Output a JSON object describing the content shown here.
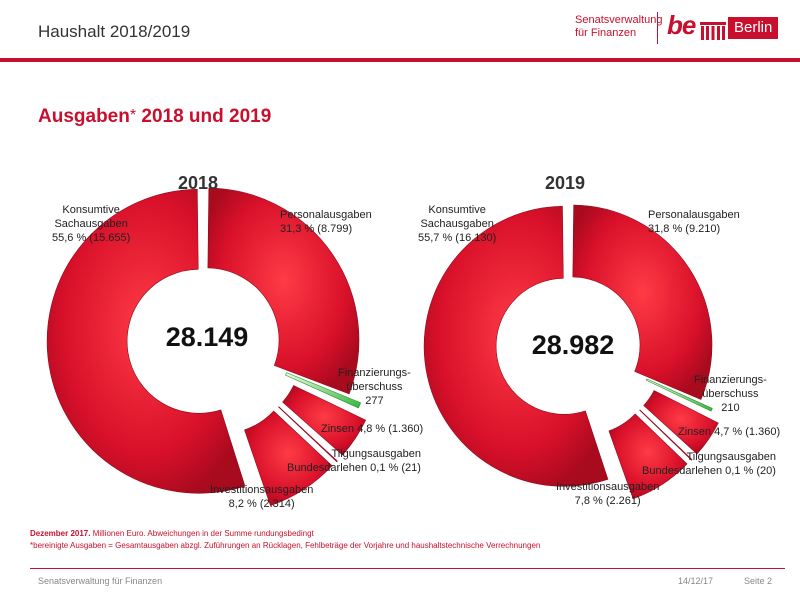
{
  "header": {
    "title": "Haushalt 2018/2019",
    "logo_line1": "Senatsverwaltung",
    "logo_line2": "für Finanzen",
    "logo_be": "be",
    "logo_berlin": "Berlin"
  },
  "slide": {
    "title": "Ausgaben",
    "title_star": "*",
    "title_suffix": " 2018 und 2019"
  },
  "colors": {
    "accent": "#c8102e",
    "segment_red": "#d8102a",
    "segment_highlight": "#7fe07a"
  },
  "chart_data": [
    {
      "type": "pie",
      "title": "2018",
      "center_total": "28.149",
      "segments": [
        {
          "label": "Personalausgaben",
          "percent": 31.3,
          "value": 8799,
          "line1": "Personalausgaben",
          "line2": "31,3 % (8.799)"
        },
        {
          "label": "Finanzierungsüberschuss",
          "percent": 1.0,
          "value": 277,
          "line1": "Finanzierungs-",
          "line2": "überschuss",
          "line3": "277"
        },
        {
          "label": "Zinsen",
          "percent": 4.8,
          "value": 1360,
          "line1": "Zinsen 4,8 % (1.360)"
        },
        {
          "label": "Tilgungsausgaben Bundesdarlehen",
          "percent": 0.1,
          "value": 21,
          "line1": "Tilgungsausgaben",
          "line2": "Bundesdarlehen 0,1 % (21)"
        },
        {
          "label": "Investitionsausgaben",
          "percent": 8.2,
          "value": 2314,
          "line1": "Investitionsausgaben",
          "line2": "8,2 % (2.314)"
        },
        {
          "label": "Konsumtive Sachausgaben",
          "percent": 55.6,
          "value": 15655,
          "line1": "Konsumtive",
          "line2": "Sachausgaben",
          "line3": "55,6 % (15.655)"
        }
      ]
    },
    {
      "type": "pie",
      "title": "2019",
      "center_total": "28.982",
      "segments": [
        {
          "label": "Personalausgaben",
          "percent": 31.8,
          "value": 9210,
          "line1": "Personalausgaben",
          "line2": "31,8 % (9.210)"
        },
        {
          "label": "Finanzierungsüberschuss",
          "percent": 0.7,
          "value": 210,
          "line1": "Finanzierungs-",
          "line2": "überschuss",
          "line3": "210"
        },
        {
          "label": "Zinsen",
          "percent": 4.7,
          "value": 1360,
          "line1": "Zinsen 4,7 % (1.360)"
        },
        {
          "label": "Tilgungsausgaben Bundesdarlehen",
          "percent": 0.1,
          "value": 20,
          "line1": "Tilgungsausgaben",
          "line2": "Bundesdarlehen 0,1 % (20)"
        },
        {
          "label": "Investitionsausgaben",
          "percent": 7.8,
          "value": 2261,
          "line1": "Investitionsausgaben",
          "line2": "7,8 % (2.261)"
        },
        {
          "label": "Konsumtive Sachausgaben",
          "percent": 55.7,
          "value": 16130,
          "line1": "Konsumtive",
          "line2": "Sachausgaben",
          "line3": "55,7 % (16.130)"
        }
      ]
    }
  ],
  "footnotes": {
    "line1_bold": "Dezember 2017.",
    "line1_rest": "  Millionen Euro. Abweichungen in der Summe rundungsbedingt",
    "line2": "*bereinigte Ausgaben = Gesamtausgaben abzgl. Zuführungen an Rücklagen, Fehlbeträge der Vorjahre und haushaltstechnische Verrechnungen"
  },
  "footer": {
    "org": "Senatsverwaltung für Finanzen",
    "date": "14/12/17",
    "page": "Seite 2"
  }
}
